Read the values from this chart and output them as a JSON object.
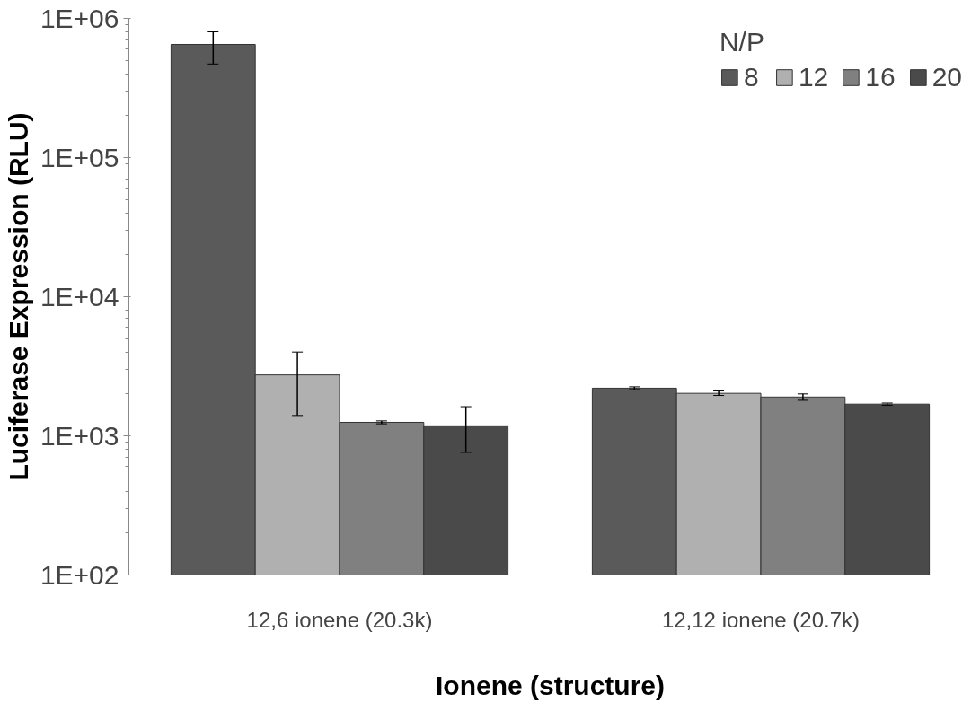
{
  "chart_data": {
    "type": "bar",
    "xlabel": "Ionene (structure)",
    "ylabel": "Luciferase Expression (RLU)",
    "legend_title": "N/P",
    "categories": [
      "12,6 ionene (20.3k)",
      "12,12 ionene (20.7k)"
    ],
    "series": [
      {
        "name": "8",
        "color": "#5a5a5a",
        "values": [
          650000,
          2200
        ],
        "errors": [
          [
            470000,
            800000
          ],
          [
            2150,
            2250
          ]
        ]
      },
      {
        "name": "12",
        "color": "#b0b0b0",
        "values": [
          2740,
          2020
        ],
        "errors": [
          [
            1400,
            4000
          ],
          [
            1950,
            2100
          ]
        ]
      },
      {
        "name": "16",
        "color": "#808080",
        "values": [
          1250,
          1900
        ],
        "errors": [
          [
            1220,
            1280
          ],
          [
            1800,
            2000
          ]
        ]
      },
      {
        "name": "20",
        "color": "#4a4a4a",
        "values": [
          1180,
          1690
        ],
        "errors": [
          [
            760,
            1620
          ],
          [
            1660,
            1720
          ]
        ]
      }
    ],
    "log": true,
    "ylim": [
      100,
      1000000
    ],
    "yticks": [
      {
        "value": 100,
        "label": "1E+02"
      },
      {
        "value": 1000,
        "label": "1E+03"
      },
      {
        "value": 10000,
        "label": "1E+04"
      },
      {
        "value": 100000,
        "label": "1E+05"
      },
      {
        "value": 1000000,
        "label": "1E+06"
      }
    ],
    "grid": false,
    "legend": "top right"
  }
}
